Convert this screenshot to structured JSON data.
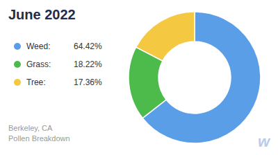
{
  "chart_data": {
    "type": "pie",
    "title": "June 2022",
    "subtitle": [
      "Berkeley, CA",
      "Pollen Breakdown"
    ],
    "categories": [
      "Weed:",
      "Grass:",
      "Tree:"
    ],
    "values": [
      64.42,
      18.22,
      17.36
    ],
    "value_labels": [
      "64.42%",
      "18.22%",
      "17.36%"
    ],
    "colors": [
      "#5B9EE8",
      "#4CBB4C",
      "#F5C842"
    ],
    "legend": "left",
    "annotations": [
      "w"
    ]
  }
}
